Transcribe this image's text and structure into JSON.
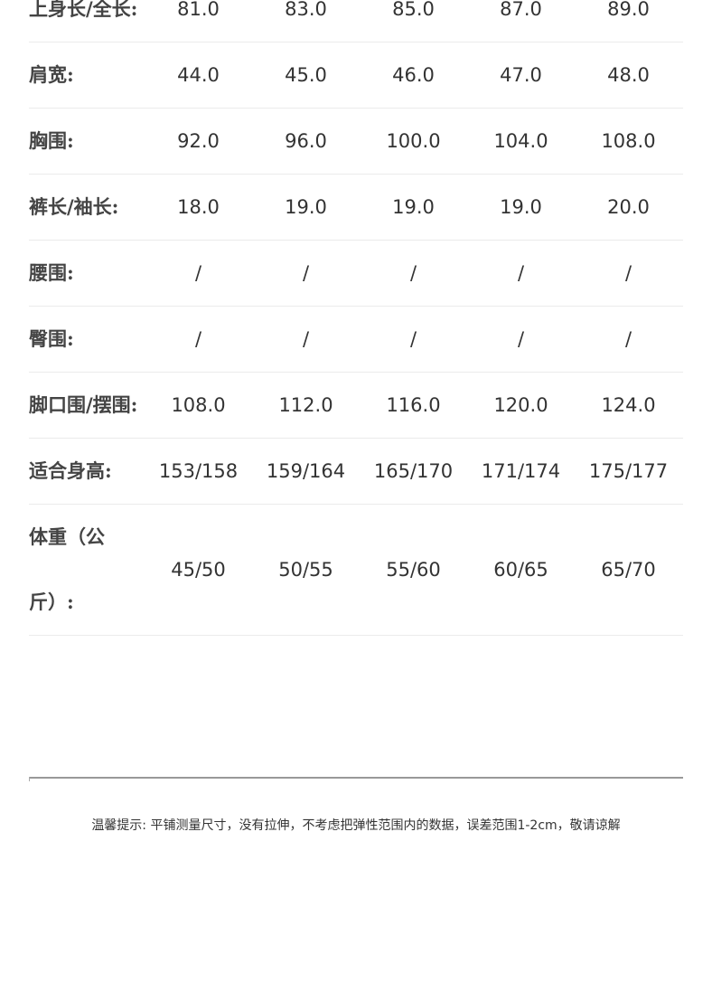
{
  "rows": [
    {
      "label": "上身长/全长:",
      "values": [
        "81.0",
        "83.0",
        "85.0",
        "87.0",
        "89.0"
      ]
    },
    {
      "label": "肩宽:",
      "values": [
        "44.0",
        "45.0",
        "46.0",
        "47.0",
        "48.0"
      ]
    },
    {
      "label": "胸围:",
      "values": [
        "92.0",
        "96.0",
        "100.0",
        "104.0",
        "108.0"
      ]
    },
    {
      "label": "裤长/袖长:",
      "values": [
        "18.0",
        "19.0",
        "19.0",
        "19.0",
        "20.0"
      ]
    },
    {
      "label": "腰围:",
      "values": [
        "/",
        "/",
        "/",
        "/",
        "/"
      ]
    },
    {
      "label": "臀围:",
      "values": [
        "/",
        "/",
        "/",
        "/",
        "/"
      ]
    },
    {
      "label": "脚口围/摆围:",
      "values": [
        "108.0",
        "112.0",
        "116.0",
        "120.0",
        "124.0"
      ]
    },
    {
      "label": "适合身高:",
      "values": [
        "153/158",
        "159/164",
        "165/170",
        "171/174",
        "175/177"
      ]
    },
    {
      "label": "体重（公斤）:",
      "values": [
        "45/50",
        "50/55",
        "55/60",
        "60/65",
        "65/70"
      ]
    }
  ],
  "tip": "温馨提示: 平铺测量尺寸，没有拉伸，不考虑把弹性范围内的数据，误差范围1-2cm，敬请谅解"
}
